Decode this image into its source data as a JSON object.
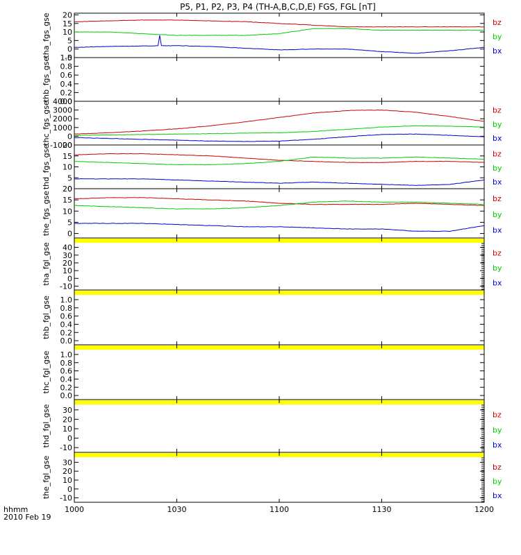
{
  "title": "P5, P1, P2, P3, P4 (TH-A,B,C,D,E) FGS, FGL [nT]",
  "x_axis": {
    "ticks": [
      0,
      30,
      60,
      90,
      120
    ],
    "tick_labels": [
      "1000",
      "1030",
      "1100",
      "1130",
      "1200"
    ],
    "label_line1": "hhmm",
    "label_line2": "2010 Feb 19",
    "range": [
      0,
      120
    ],
    "unit": "minutes after 1000"
  },
  "colors": {
    "bx": "#0000cc",
    "by": "#00cc00",
    "bz": "#cc0000",
    "fill_flag": "#ffff00",
    "axis": "#000000"
  },
  "chart_data": [
    {
      "type": "line",
      "ylabel": "tha_fgs_gse",
      "ylim": [
        -5,
        21
      ],
      "yticks": [
        20,
        15,
        10,
        5,
        0,
        -5
      ],
      "legend": [
        "bz",
        "by",
        "bx"
      ],
      "x": [
        0,
        10,
        20,
        30,
        40,
        50,
        60,
        70,
        80,
        90,
        100,
        110,
        120
      ],
      "series": [
        {
          "name": "bz",
          "values": [
            16,
            16.5,
            17,
            17,
            16.5,
            16,
            15,
            14,
            13,
            13,
            13,
            13,
            13
          ]
        },
        {
          "name": "by",
          "values": [
            10,
            10,
            9,
            8,
            8,
            8,
            9,
            12,
            12,
            11,
            11,
            11,
            11
          ]
        },
        {
          "name": "bx",
          "values": [
            1,
            1.5,
            1.8,
            2,
            1.5,
            0.5,
            -0.5,
            0,
            0,
            -1.5,
            -2.5,
            -1,
            1
          ]
        }
      ],
      "spike": {
        "x": 25,
        "series": "bx",
        "value": 8
      }
    },
    {
      "type": "line",
      "ylabel": "thb_fgs_gse",
      "ylim": [
        0,
        1
      ],
      "yticks": [
        1.0,
        0.8,
        0.6,
        0.4,
        0.2,
        0.0
      ],
      "ytick_labels": [
        "1.0",
        "0.8",
        "0.6",
        "0.4",
        "0.2",
        "0.0"
      ],
      "series": []
    },
    {
      "type": "line",
      "ylabel": "thc_fgs_gse",
      "ylim": [
        -1000,
        4000
      ],
      "yticks": [
        4000,
        3000,
        2000,
        1000,
        0,
        -1000
      ],
      "legend": [
        "bz",
        "by",
        "bx"
      ],
      "x": [
        0,
        10,
        20,
        30,
        40,
        50,
        60,
        70,
        80,
        90,
        100,
        110,
        120
      ],
      "series": [
        {
          "name": "bz",
          "values": [
            250,
            400,
            600,
            850,
            1200,
            1650,
            2150,
            2650,
            2950,
            3000,
            2750,
            2250,
            1700
          ]
        },
        {
          "name": "by",
          "values": [
            100,
            150,
            200,
            250,
            300,
            350,
            400,
            550,
            800,
            1050,
            1200,
            1150,
            1050
          ]
        },
        {
          "name": "bx",
          "values": [
            -150,
            -250,
            -350,
            -450,
            -550,
            -600,
            -550,
            -350,
            -50,
            200,
            250,
            100,
            -50
          ]
        }
      ]
    },
    {
      "type": "line",
      "ylabel": "thd_fgs_gse",
      "ylim": [
        0,
        20
      ],
      "yticks": [
        20,
        15,
        10,
        5,
        0
      ],
      "legend": [
        "bz",
        "by",
        "bx"
      ],
      "x": [
        0,
        10,
        20,
        30,
        40,
        50,
        60,
        70,
        80,
        90,
        100,
        110,
        120
      ],
      "series": [
        {
          "name": "bz",
          "values": [
            15.5,
            16,
            16,
            15.5,
            15,
            14,
            13,
            12.5,
            12,
            12,
            12.5,
            12.5,
            12
          ]
        },
        {
          "name": "by",
          "values": [
            12.5,
            12,
            11.5,
            11,
            11,
            11.5,
            12.5,
            14.5,
            14,
            14,
            14.5,
            14,
            13.5
          ]
        },
        {
          "name": "bx",
          "values": [
            4.5,
            4.5,
            4.5,
            4,
            3.5,
            3,
            2.5,
            3,
            2.5,
            2,
            1.5,
            2,
            4
          ]
        }
      ]
    },
    {
      "type": "line",
      "ylabel": "the_fgs_gse",
      "ylim": [
        -2,
        20
      ],
      "yticks": [
        20,
        15,
        10,
        5,
        0
      ],
      "legend": [
        "bz",
        "by",
        "bx"
      ],
      "x": [
        0,
        10,
        20,
        30,
        40,
        50,
        60,
        70,
        80,
        90,
        100,
        110,
        120
      ],
      "series": [
        {
          "name": "bz",
          "values": [
            15.5,
            16,
            16,
            15.5,
            15,
            14.5,
            13.5,
            13,
            13,
            13,
            13.5,
            13,
            12.5
          ]
        },
        {
          "name": "by",
          "values": [
            12.5,
            12,
            11.5,
            11,
            11,
            11.5,
            12.5,
            14,
            14.5,
            14,
            14,
            13.5,
            13
          ]
        },
        {
          "name": "bx",
          "values": [
            4.5,
            4.5,
            4.5,
            4,
            3.5,
            3,
            3,
            2.5,
            2,
            2,
            1,
            1,
            3.5
          ]
        }
      ]
    },
    {
      "type": "line",
      "ylabel": "tha_fgl_gse",
      "ylim": [
        -15,
        45
      ],
      "yticks": [
        40,
        30,
        20,
        10,
        0,
        -10
      ],
      "legend": [
        "bz",
        "by",
        "bx"
      ],
      "series": []
    },
    {
      "type": "line",
      "ylabel": "thb_fgl_gse",
      "ylim": [
        -0.1,
        1.1
      ],
      "yticks": [
        1.0,
        0.8,
        0.6,
        0.4,
        0.2,
        0.0
      ],
      "ytick_labels": [
        "1.0",
        "0.8",
        "0.6",
        "0.4",
        "0.2",
        "0.0"
      ],
      "series": []
    },
    {
      "type": "line",
      "ylabel": "thc_fgl_gse",
      "ylim": [
        -0.1,
        1.1
      ],
      "yticks": [
        1.0,
        0.8,
        0.6,
        0.4,
        0.2,
        0.0
      ],
      "ytick_labels": [
        "1.0",
        "0.8",
        "0.6",
        "0.4",
        "0.2",
        "0.0"
      ],
      "series": []
    },
    {
      "type": "line",
      "ylabel": "thd_fgl_gse",
      "ylim": [
        -15,
        35
      ],
      "yticks": [
        30,
        20,
        10,
        0,
        -10
      ],
      "legend": [
        "bz",
        "by",
        "bx"
      ],
      "series": []
    },
    {
      "type": "line",
      "ylabel": "the_fgl_gse",
      "ylim": [
        -15,
        35
      ],
      "yticks": [
        30,
        20,
        10,
        0,
        -10
      ],
      "legend": [
        "bz",
        "by",
        "bx"
      ],
      "series": []
    }
  ]
}
